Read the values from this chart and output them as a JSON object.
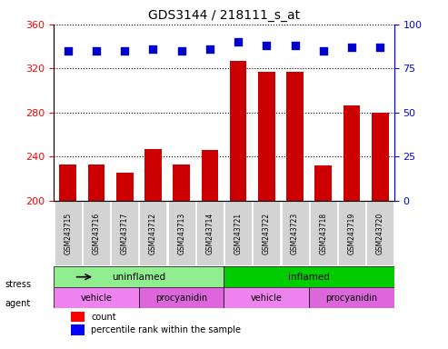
{
  "title": "GDS3144 / 218111_s_at",
  "samples": [
    "GSM243715",
    "GSM243716",
    "GSM243717",
    "GSM243712",
    "GSM243713",
    "GSM243714",
    "GSM243721",
    "GSM243722",
    "GSM243723",
    "GSM243718",
    "GSM243719",
    "GSM243720"
  ],
  "bar_values": [
    233,
    233,
    225,
    247,
    233,
    246,
    327,
    317,
    317,
    232,
    286,
    280
  ],
  "dot_values": [
    85,
    85,
    85,
    86,
    85,
    86,
    90,
    88,
    88,
    85,
    87,
    87
  ],
  "ylim_left": [
    200,
    360
  ],
  "ylim_right": [
    0,
    100
  ],
  "yticks_left": [
    200,
    240,
    280,
    320,
    360
  ],
  "yticks_right": [
    0,
    25,
    50,
    75,
    100
  ],
  "bar_color": "#cc0000",
  "dot_color": "#0000cc",
  "background_color": "#ffffff",
  "grid_color": "#000000",
  "stress_groups": [
    {
      "label": "uninflamed",
      "start": 0,
      "end": 6,
      "color": "#90ee90"
    },
    {
      "label": "inflamed",
      "start": 6,
      "end": 12,
      "color": "#00cc00"
    }
  ],
  "agent_groups": [
    {
      "label": "vehicle",
      "start": 0,
      "end": 3,
      "color": "#ee82ee"
    },
    {
      "label": "procyanidin",
      "start": 3,
      "end": 6,
      "color": "#dd66dd"
    },
    {
      "label": "vehicle",
      "start": 6,
      "end": 9,
      "color": "#ee82ee"
    },
    {
      "label": "procyanidin",
      "start": 9,
      "end": 12,
      "color": "#dd66dd"
    }
  ],
  "legend_items": [
    {
      "label": "count",
      "color": "#cc0000",
      "marker": "s"
    },
    {
      "label": "percentile rank within the sample",
      "color": "#0000cc",
      "marker": "s"
    }
  ],
  "xticklabel_bg": "#d3d3d3"
}
